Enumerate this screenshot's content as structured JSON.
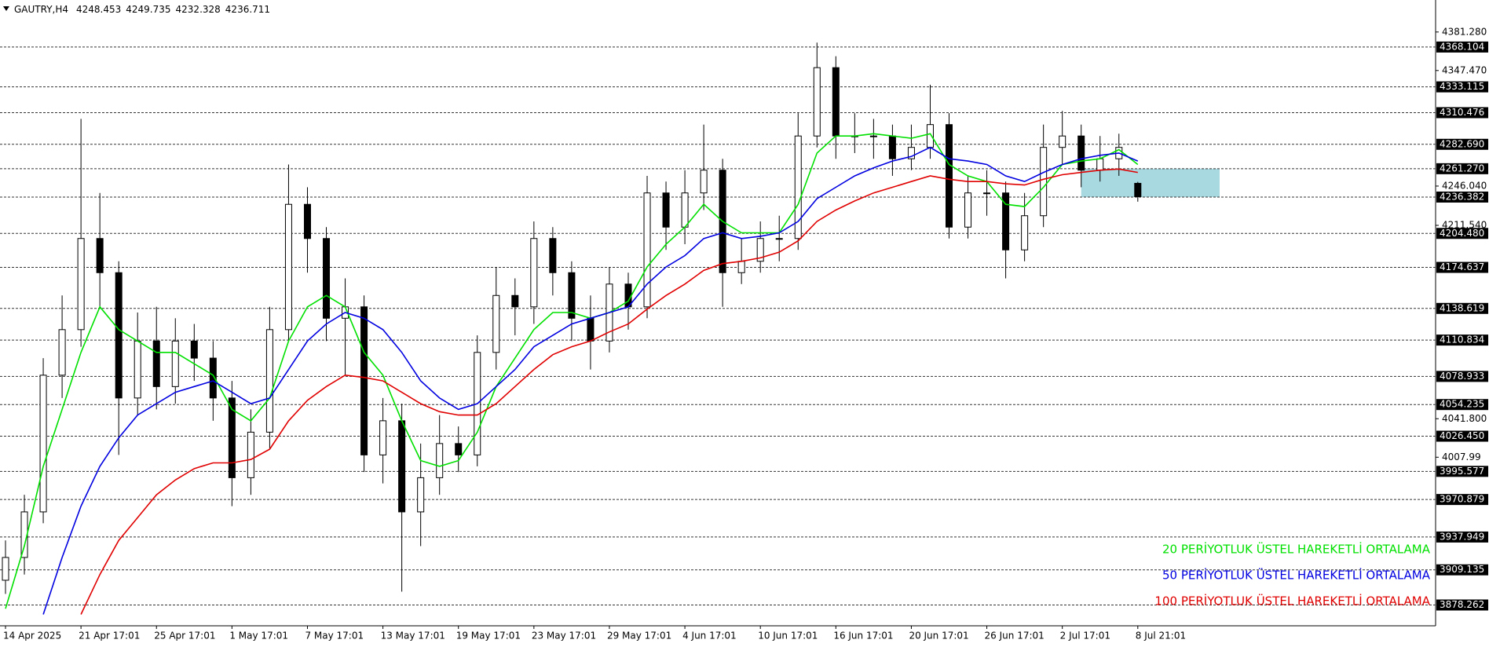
{
  "chart_data": {
    "type": "candlestick",
    "symbol": "GAUTRY,H4",
    "last_ohlc": [
      4248.453,
      4249.735,
      4232.328,
      4236.711
    ],
    "categories": [
      "14 Apr 2025",
      null,
      null,
      null,
      "21 Apr 17:01",
      null,
      null,
      null,
      "25 Apr 17:01",
      null,
      null,
      null,
      "1 May 17:01",
      null,
      null,
      null,
      "7 May 17:01",
      null,
      null,
      null,
      "13 May 17:01",
      null,
      null,
      null,
      "19 May 17:01",
      null,
      null,
      null,
      "23 May 17:01",
      null,
      null,
      null,
      "29 May 17:01",
      null,
      null,
      null,
      "4 Jun 17:01",
      null,
      null,
      null,
      "10 Jun 17:01",
      null,
      null,
      null,
      "16 Jun 17:01",
      null,
      null,
      null,
      "20 Jun 17:01",
      null,
      null,
      null,
      "26 Jun 17:01",
      null,
      null,
      null,
      "2 Jul 17:01",
      null,
      null,
      null,
      "8 Jul 21:01"
    ],
    "open": [
      3900,
      3920,
      3960,
      4080,
      4120,
      4200,
      4170,
      4060,
      4110,
      4070,
      4110,
      4095,
      4060,
      3990,
      4030,
      4120,
      4230,
      4200,
      4130,
      4140,
      4010,
      4040,
      3960,
      3990,
      4020,
      4010,
      4100,
      4150,
      4140,
      4200,
      4170,
      4130,
      4110,
      4160,
      4140,
      4240,
      4210,
      4240,
      4260,
      4170,
      4180,
      4200,
      4200,
      4290,
      4350,
      4290,
      4290,
      4290,
      4270,
      4280,
      4300,
      4210,
      4240,
      4240,
      4190,
      4220,
      4280,
      4290,
      4260,
      4270,
      4248.453
    ],
    "high": [
      3935,
      3975,
      4095,
      4150,
      4305,
      4240,
      4180,
      4135,
      4140,
      4130,
      4125,
      4110,
      4075,
      4050,
      4140,
      4265,
      4245,
      4210,
      4165,
      4150,
      4060,
      4055,
      4020,
      4045,
      4035,
      4115,
      4175,
      4165,
      4215,
      4210,
      4180,
      4150,
      4175,
      4170,
      4255,
      4250,
      4260,
      4300,
      4270,
      4200,
      4215,
      4220,
      4310,
      4372,
      4360,
      4310,
      4305,
      4300,
      4300,
      4335,
      4310,
      4255,
      4260,
      4250,
      4240,
      4300,
      4312,
      4300,
      4290,
      4292,
      4249.735
    ],
    "low": [
      3888,
      3905,
      3950,
      4060,
      4105,
      4140,
      4010,
      4045,
      4050,
      4055,
      4075,
      4040,
      3965,
      3975,
      4015,
      4110,
      4170,
      4110,
      4080,
      3995,
      3985,
      3890,
      3930,
      3975,
      3995,
      4000,
      4085,
      4115,
      4125,
      4150,
      4110,
      4085,
      4100,
      4120,
      4130,
      4190,
      4195,
      4225,
      4140,
      4160,
      4170,
      4180,
      4190,
      4280,
      4270,
      4275,
      4270,
      4255,
      4260,
      4270,
      4200,
      4200,
      4220,
      4165,
      4180,
      4210,
      4265,
      4245,
      4250,
      4255,
      4232.328
    ],
    "close": [
      3920,
      3960,
      4080,
      4120,
      4200,
      4170,
      4060,
      4110,
      4070,
      4110,
      4095,
      4060,
      3990,
      4030,
      4120,
      4230,
      4200,
      4130,
      4140,
      4010,
      4040,
      3960,
      3990,
      4020,
      4010,
      4100,
      4150,
      4140,
      4200,
      4170,
      4130,
      4110,
      4160,
      4140,
      4240,
      4210,
      4240,
      4260,
      4170,
      4180,
      4200,
      4200,
      4290,
      4350,
      4290,
      4290,
      4290,
      4270,
      4280,
      4300,
      4210,
      4240,
      4240,
      4190,
      4220,
      4280,
      4290,
      4260,
      4270,
      4280,
      4236.711
    ],
    "candle_colors": {
      "up": "#ffffff",
      "down": "#000000",
      "outline": "#000000"
    },
    "series": [
      {
        "name": "20 PERİYOTLUK ÜSTEL HAREKETLİ ORTALAMA",
        "color": "#00e000",
        "values": [
          3875,
          3930,
          4000,
          4050,
          4100,
          4140,
          4120,
          4110,
          4100,
          4100,
          4090,
          4080,
          4050,
          4040,
          4060,
          4110,
          4140,
          4150,
          4140,
          4100,
          4080,
          4040,
          4005,
          4000,
          4005,
          4030,
          4070,
          4095,
          4120,
          4135,
          4135,
          4130,
          4135,
          4145,
          4175,
          4195,
          4210,
          4230,
          4215,
          4205,
          4205,
          4205,
          4230,
          4275,
          4290,
          4290,
          4292,
          4290,
          4288,
          4292,
          4265,
          4255,
          4250,
          4230,
          4228,
          4245,
          4265,
          4268,
          4270,
          4278,
          4265
        ]
      },
      {
        "name": "50 PERİYOTLUK ÜSTEL HAREKETLİ ORTALAMA",
        "color": "#0000e0",
        "values": [
          null,
          null,
          3870,
          3920,
          3965,
          4000,
          4025,
          4045,
          4055,
          4065,
          4070,
          4075,
          4065,
          4055,
          4060,
          4085,
          4110,
          4125,
          4135,
          4130,
          4120,
          4100,
          4075,
          4060,
          4050,
          4055,
          4070,
          4085,
          4105,
          4115,
          4125,
          4130,
          4135,
          4140,
          4160,
          4175,
          4185,
          4200,
          4205,
          4200,
          4202,
          4205,
          4215,
          4235,
          4245,
          4255,
          4262,
          4268,
          4272,
          4280,
          4270,
          4268,
          4265,
          4255,
          4250,
          4258,
          4265,
          4270,
          4273,
          4275,
          4268
        ]
      },
      {
        "name": "100 PERİYOTLUK ÜSTEL HAREKETLİ ORTALAMA",
        "color": "#e00000",
        "values": [
          null,
          null,
          null,
          null,
          3870,
          3905,
          3935,
          3955,
          3975,
          3988,
          3998,
          4003,
          4003,
          4006,
          4015,
          4040,
          4058,
          4070,
          4080,
          4078,
          4075,
          4065,
          4055,
          4048,
          4045,
          4045,
          4055,
          4070,
          4085,
          4098,
          4105,
          4110,
          4118,
          4125,
          4138,
          4150,
          4160,
          4172,
          4178,
          4180,
          4183,
          4188,
          4198,
          4215,
          4225,
          4233,
          4240,
          4245,
          4250,
          4255,
          4252,
          4250,
          4250,
          4248,
          4247,
          4252,
          4256,
          4258,
          4260,
          4261,
          4258
        ]
      }
    ],
    "levels": [
      4368.104,
      4333.115,
      4310.476,
      4282.69,
      4261.27,
      4236.382,
      4204.48,
      4174.637,
      4138.619,
      4110.834,
      4078.933,
      4054.235,
      4026.45,
      3995.577,
      3970.879,
      3937.949,
      3909.135,
      3878.262
    ],
    "level_labels": [
      "4368.104",
      "4333.115",
      "4310.476",
      "4282.690",
      "4261.270",
      "4236.382",
      "4204.480",
      "4174.637",
      "4138.619",
      "4110.834",
      "4078.933",
      "4054.235",
      "4026.450",
      "3995.577",
      "3970.879",
      "3937.949",
      "3909.135",
      "3878.262"
    ],
    "zone": [
      4236.382,
      4261.27
    ],
    "zone_color": "#a8d8e0",
    "ylim": [
      3860,
      4408
    ],
    "yticks": [
      {
        "value": 4381.28,
        "label": "4381.280"
      },
      {
        "value": 4347.47,
        "label": "4347.470"
      },
      {
        "value": 4246.04,
        "label": "4246.040"
      },
      {
        "value": 4211.54,
        "label": "4211.540"
      },
      {
        "value": 4041.8,
        "label": "4041.800"
      },
      4007.99
    ],
    "grid": false
  }
}
